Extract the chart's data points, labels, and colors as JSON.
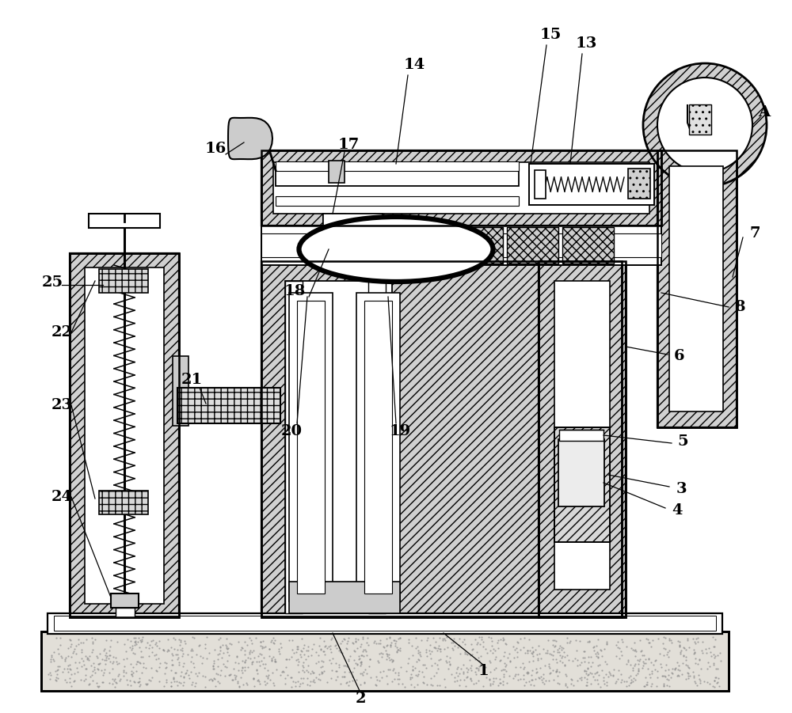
{
  "bg": "#ffffff",
  "figw": 10.0,
  "figh": 9.01,
  "dpi": 100,
  "light_gray": "#d8d8d8",
  "mid_gray": "#c8c8c8",
  "dark_line": "#000000",
  "sandy": "#e0ddd8",
  "white": "#ffffff"
}
